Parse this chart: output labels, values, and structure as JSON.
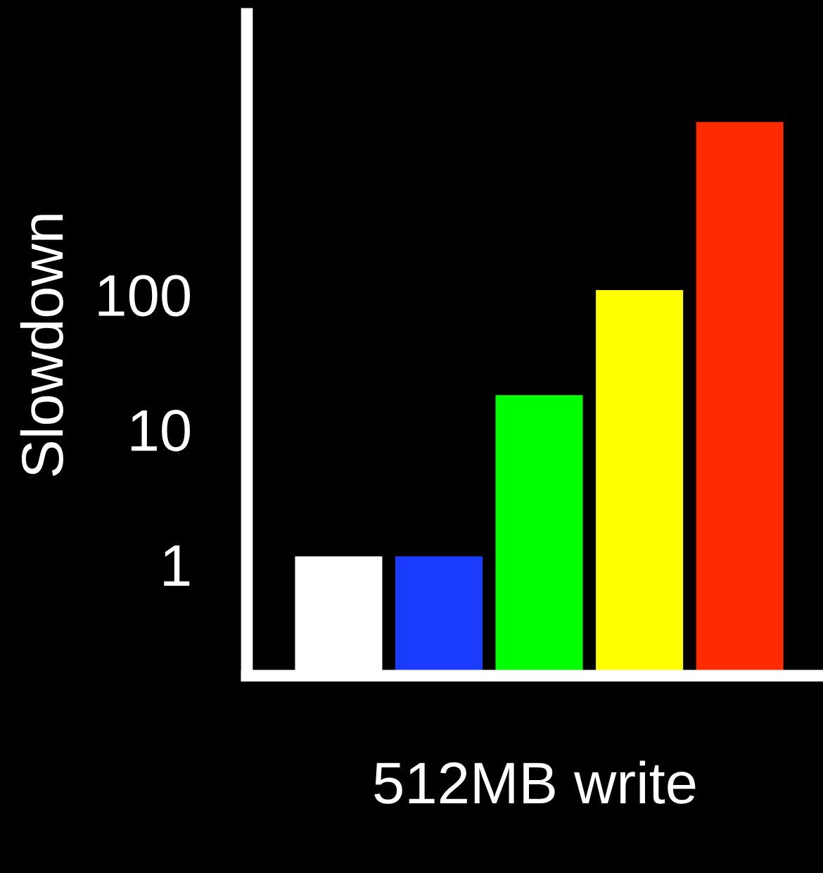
{
  "chart_data": {
    "type": "bar",
    "ylabel": "Slowdown",
    "xlabel": "512MB write",
    "categories": [
      null,
      null,
      null,
      null,
      null
    ],
    "values": [
      1.15,
      1.15,
      18,
      108,
      1900
    ],
    "colors": [
      "#ffffff",
      "#1a3cff",
      "#00ff00",
      "#ffff00",
      "#ff2a00"
    ],
    "log": true,
    "ylim": [
      0.15,
      12000
    ],
    "yticks": [
      1,
      10,
      100
    ],
    "grid": false,
    "legend": false
  }
}
